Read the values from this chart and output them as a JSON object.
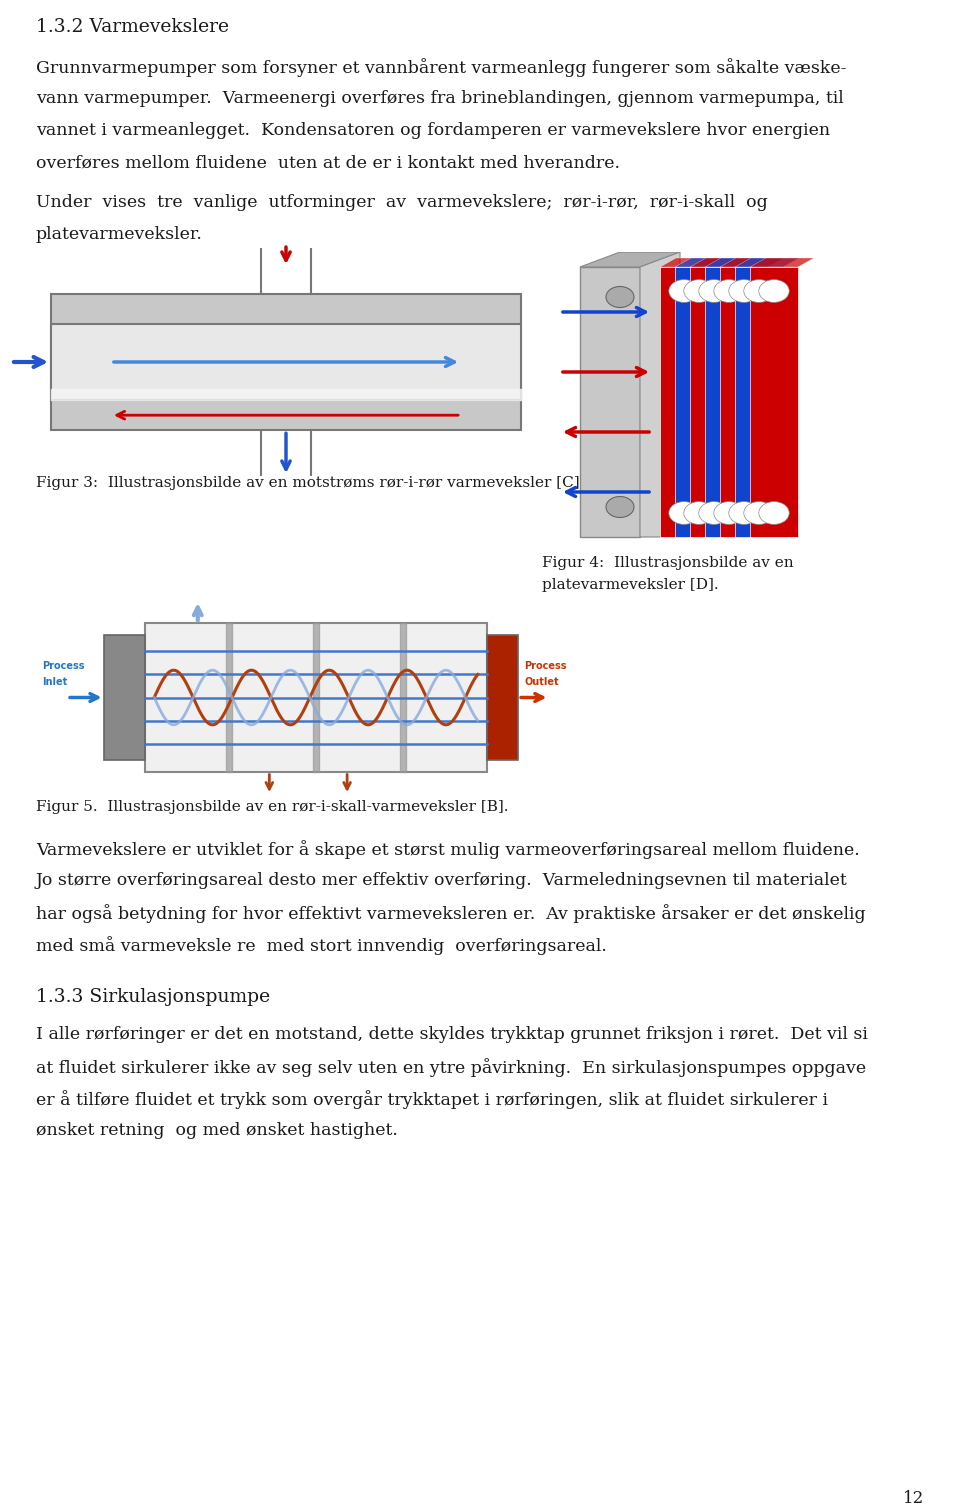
{
  "bg_color": "#ffffff",
  "text_color": "#1a1a1a",
  "title": "1.3.2 Varmevekslere",
  "para1_lines": [
    "Grunnvarmepumper som forsyner et vannbårent varmeanlegg fungerer som såkalte væske-",
    "vann varmepumper.  Varmeenergi overføres fra brineblandingen, gjennom varmepumpa, til",
    "vannet i varmeanlegget.  Kondensatoren og fordamperen er varmevekslere hvor energien",
    "overføres mellom fluidene  uten at de er i kontakt med hverandre."
  ],
  "para2_lines": [
    "Under  vises  tre  vanlige  utforminger  av  varmevekslere;  rør-i-rør,  rør-i-skall  og",
    "platevarmeveksler."
  ],
  "fig3_caption": "Figur 3:  Illustrasjonsbilde av en motstrøms rør-i-rør varmeveksler [C].",
  "fig4_caption_line1": "Figur 4:  Illustrasjonsbilde av en",
  "fig4_caption_line2": "platevarmeveksler [D].",
  "fig5_caption": "Figur 5.  Illustrasjonsbilde av en rør-i-skall-varmeveksler [B].",
  "para3_lines": [
    "Varmevekslere er utviklet for å skape et størst mulig varmeoverføringsareal mellom fluidene.",
    "Jo større overføringsareal desto mer effektiv overføring.  Varmeledningsevnen til materialet",
    "har også betydning for hvor effektivt varmeveksleren er.  Av praktiske årsaker er det ønskelig",
    "med små varmeveksle re  med stort innvendig  overføringsareal."
  ],
  "heading2": "1.3.3 Sirkulasjonspumpe",
  "para4_lines": [
    "I alle rørføringer er det en motstand, dette skyldes trykktap grunnet friksjon i røret.  Det vil si",
    "at fluidet sirkulerer ikke av seg selv uten en ytre påvirkning.  En sirkulasjonspumpes oppgave",
    "er å tilføre fluidet et trykk som overgår trykktapet i rørføringen, slik at fluidet sirkulerer i",
    "ønsket retning  og med ønsket hastighet."
  ],
  "page_num": "12",
  "fs_title": 13.5,
  "fs_body": 12.5,
  "fs_caption": 11,
  "fs_page": 12
}
